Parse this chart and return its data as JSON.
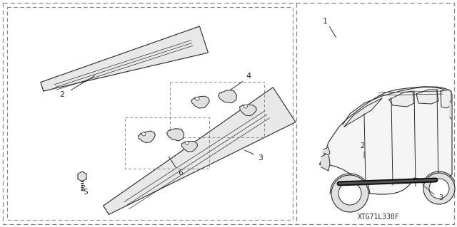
{
  "background_color": "#ffffff",
  "diagram_code": "XTG71L330F",
  "line_color": "#2a2a2a",
  "dash_color": "#888888",
  "fig_w": 6.4,
  "fig_h": 3.19,
  "dpi": 100
}
